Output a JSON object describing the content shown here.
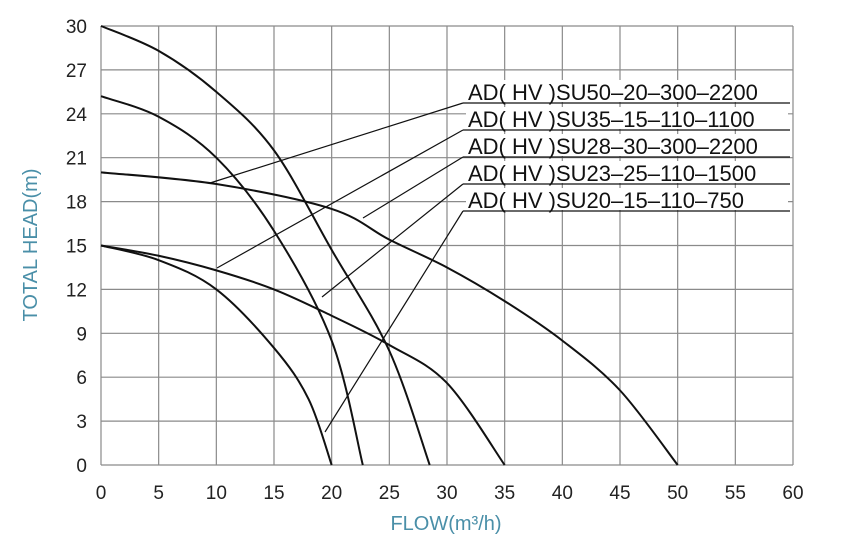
{
  "chart_data": {
    "type": "line",
    "x_label": "FLOW(m³/h)",
    "y_label": "TOTAL HEAD(m)",
    "xlim": [
      0,
      60
    ],
    "xticks": [
      0,
      5,
      10,
      15,
      20,
      25,
      30,
      35,
      40,
      45,
      50,
      55,
      60
    ],
    "ylim": [
      0,
      30
    ],
    "yticks": [
      0,
      3,
      6,
      9,
      12,
      15,
      18,
      21,
      24,
      27,
      30
    ],
    "grid": true,
    "series": [
      {
        "name": "AD( HV )SU50–20–300–2200",
        "color": "#111111",
        "x": [
          0,
          10,
          20,
          25,
          30,
          35,
          40,
          45,
          50
        ],
        "values": [
          20,
          19.2,
          17.5,
          15.4,
          13.5,
          11.2,
          8.5,
          5.1,
          0
        ]
      },
      {
        "name": "AD( HV )SU35–15–110–1100",
        "color": "#111111",
        "x": [
          0,
          5,
          10,
          15,
          20,
          25,
          30,
          35
        ],
        "values": [
          15,
          14.3,
          13.3,
          12,
          10.2,
          8.2,
          5.6,
          0
        ]
      },
      {
        "name": "AD( HV )SU28–30–300–2200",
        "color": "#111111",
        "x": [
          0,
          5,
          10,
          15,
          20,
          25,
          28.5
        ],
        "values": [
          30,
          28.3,
          25.5,
          21.5,
          14.7,
          7.8,
          0
        ]
      },
      {
        "name": "AD( HV )SU23–25–110–1500",
        "color": "#111111",
        "x": [
          0,
          5,
          10,
          15,
          20,
          22.7
        ],
        "values": [
          25.2,
          23.8,
          21,
          16,
          8.5,
          0
        ]
      },
      {
        "name": "AD( HV )SU20–15–110–750",
        "color": "#111111",
        "x": [
          0,
          5,
          10,
          15,
          18,
          20
        ],
        "values": [
          15,
          14,
          12,
          8,
          4.5,
          0
        ]
      }
    ]
  }
}
